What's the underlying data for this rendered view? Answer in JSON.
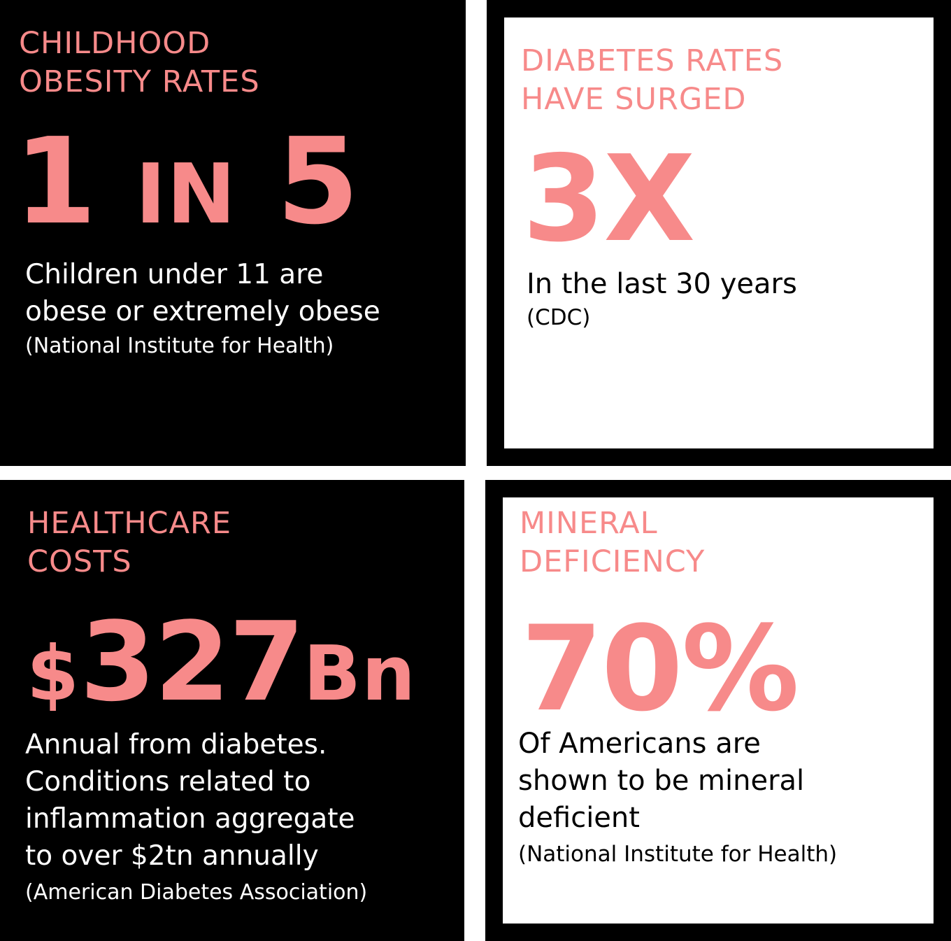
{
  "cards": [
    {
      "heading": "CHILDHOOD\nOBESITY RATES",
      "stat_part1": "1 ",
      "stat_part2": "IN",
      "stat_part3": " 5",
      "description": "Children under 11 are\nobese or extremely obese",
      "source": "(National Institute for Health)"
    },
    {
      "heading": "DIABETES RATES\nHAVE SURGED",
      "stat": "3X",
      "description": "In the last 30 years",
      "source": "(CDC)"
    },
    {
      "heading": "HEALTHCARE\nCOSTS",
      "stat_part1": "$",
      "stat_part2": "327",
      "stat_part3": "Bn",
      "description": "Annual from diabetes.\nConditions related to\ninflammation aggregate\nto over $2tn annually",
      "source": "(American Diabetes Association)"
    },
    {
      "heading": "MINERAL\nDEFICIENCY",
      "stat": "70%",
      "description": "Of Americans are\nshown to be mineral\ndeficient",
      "source": "(National Institute for Health)"
    }
  ],
  "colors": {
    "accent": "#f78a8a",
    "dark_bg": "#000000",
    "light_bg": "#ffffff"
  }
}
